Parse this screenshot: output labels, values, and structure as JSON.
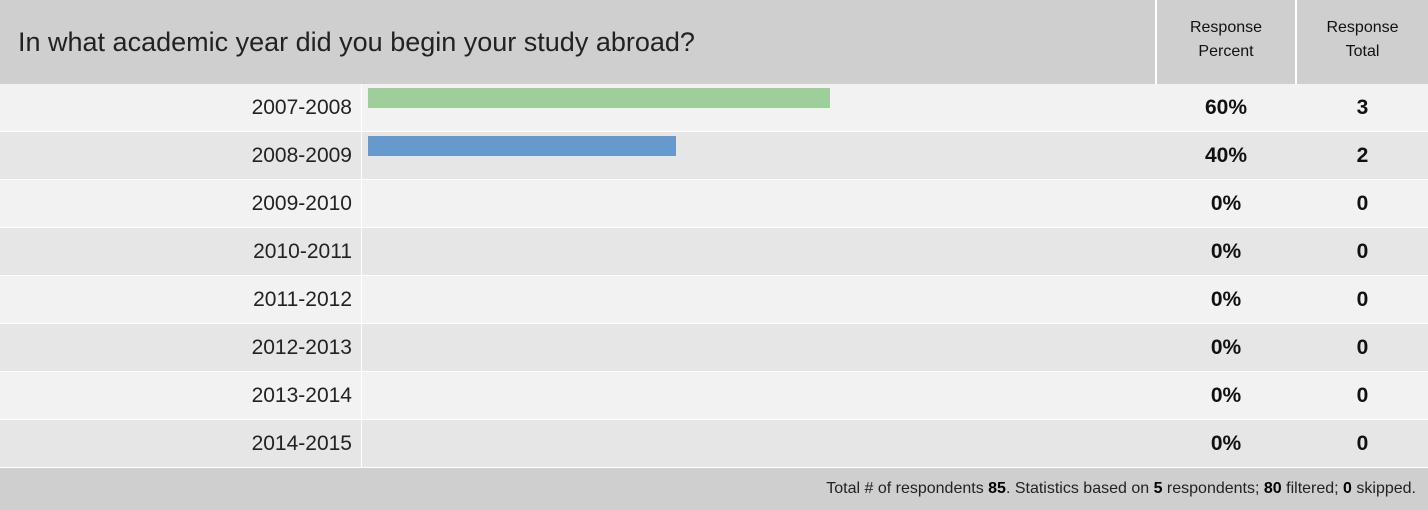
{
  "question": "In what academic year did you begin your study abroad?",
  "columns": {
    "percent_line1": "Response",
    "percent_line2": "Percent",
    "total_line1": "Response",
    "total_line2": "Total"
  },
  "rows": [
    {
      "label": "2007-2008",
      "percent": "60%",
      "total": "3",
      "fraction": 0.6,
      "color": "#9ecf9b"
    },
    {
      "label": "2008-2009",
      "percent": "40%",
      "total": "2",
      "fraction": 0.4,
      "color": "#6699cc"
    },
    {
      "label": "2009-2010",
      "percent": "0%",
      "total": "0",
      "fraction": 0
    },
    {
      "label": "2010-2011",
      "percent": "0%",
      "total": "0",
      "fraction": 0
    },
    {
      "label": "2011-2012",
      "percent": "0%",
      "total": "0",
      "fraction": 0
    },
    {
      "label": "2012-2013",
      "percent": "0%",
      "total": "0",
      "fraction": 0
    },
    {
      "label": "2013-2014",
      "percent": "0%",
      "total": "0",
      "fraction": 0
    },
    {
      "label": "2014-2015",
      "percent": "0%",
      "total": "0",
      "fraction": 0
    }
  ],
  "footer": {
    "prefix": "Total # of respondents ",
    "respondents": "85",
    "mid1": ". Statistics based on ",
    "based_on": "5",
    "mid2": " respondents; ",
    "filtered": "80",
    "mid3": " filtered; ",
    "skipped": "0",
    "suffix": " skipped."
  }
}
